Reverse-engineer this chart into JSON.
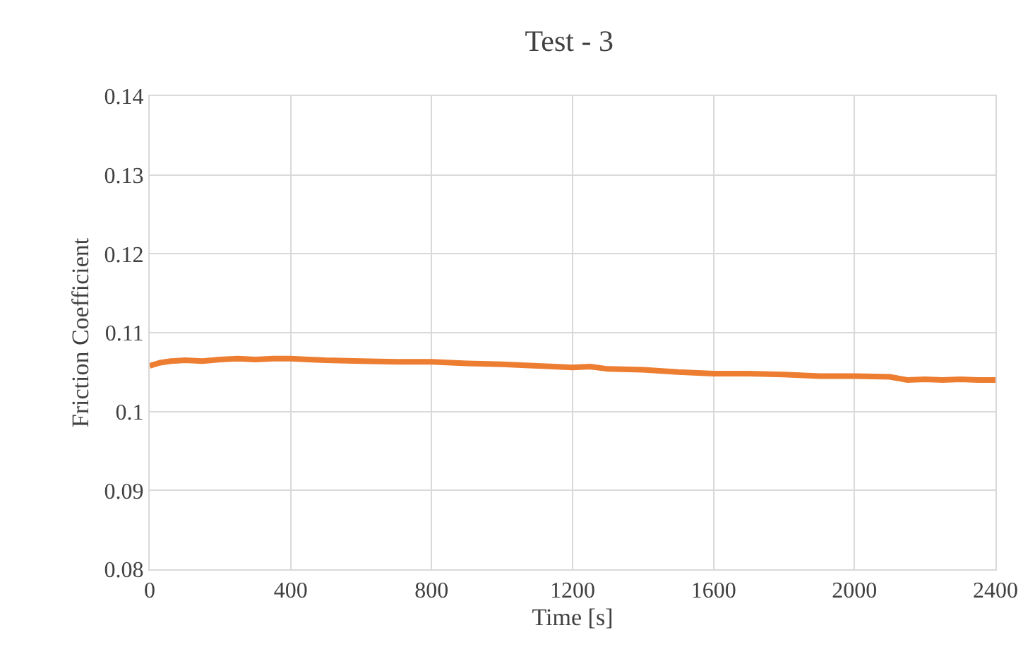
{
  "chart_data": {
    "type": "line",
    "title": "Test - 3",
    "xlabel": "Time [s]",
    "ylabel": "Friction Coefficient",
    "x": [
      0,
      30,
      60,
      100,
      150,
      200,
      250,
      300,
      350,
      400,
      450,
      500,
      600,
      700,
      800,
      900,
      1000,
      1100,
      1200,
      1250,
      1300,
      1400,
      1500,
      1600,
      1700,
      1800,
      1900,
      2000,
      2100,
      2150,
      2200,
      2250,
      2300,
      2350,
      2400
    ],
    "series": [
      {
        "color": "#ed7d31",
        "values": [
          0.1058,
          0.1062,
          0.1064,
          0.1065,
          0.1064,
          0.1066,
          0.1067,
          0.1066,
          0.1067,
          0.1067,
          0.1066,
          0.1065,
          0.1064,
          0.1063,
          0.1063,
          0.1061,
          0.106,
          0.1058,
          0.1056,
          0.1057,
          0.1054,
          0.1053,
          0.105,
          0.1048,
          0.1048,
          0.1047,
          0.1045,
          0.1045,
          0.1044,
          0.104,
          0.1041,
          0.104,
          0.1041,
          0.104,
          0.104
        ]
      }
    ],
    "xlim": [
      0,
      2400
    ],
    "xticks": [
      0,
      400,
      800,
      1200,
      1600,
      2000,
      2400
    ],
    "ylim": [
      0.08,
      0.14
    ],
    "yticks": [
      0.08,
      0.09,
      0.1,
      0.11,
      0.12,
      0.13,
      0.14
    ],
    "grid": true,
    "marker": "none",
    "line_style": "solid"
  }
}
